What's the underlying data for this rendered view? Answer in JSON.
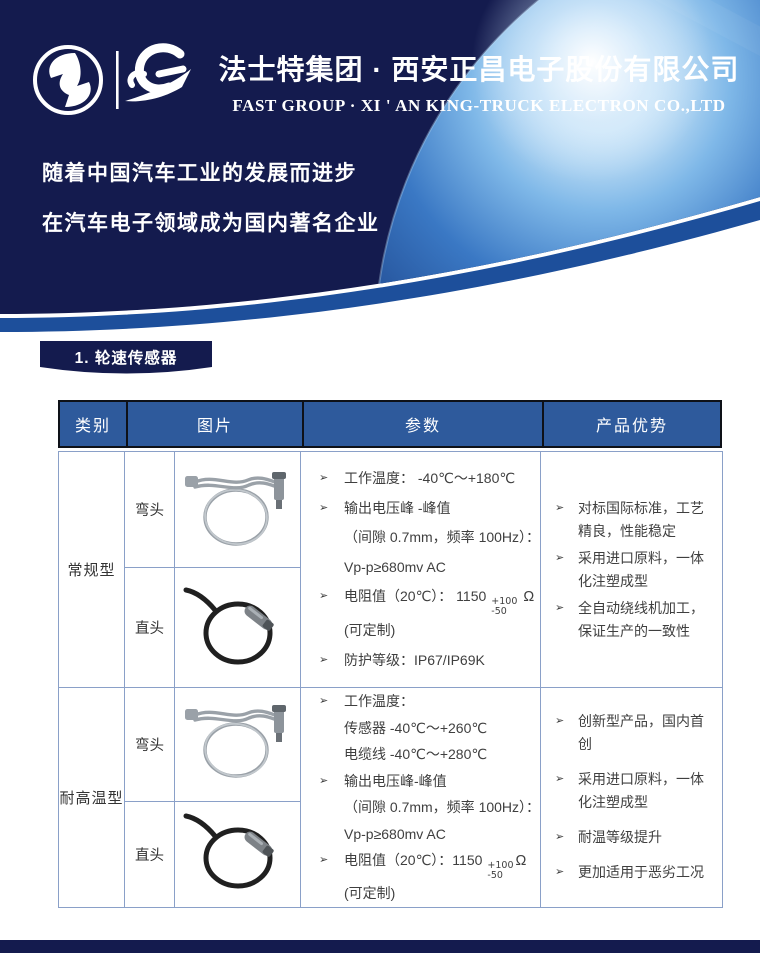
{
  "colors": {
    "navy": "#141b4e",
    "band_blue": "#1d4f9b",
    "table_header_blue": "#2e5a9c",
    "grid_blue": "#8aa0c8",
    "earth_light_blue": "#7fb8e8",
    "text_dark": "#3f3f3f"
  },
  "header": {
    "title_cn": "法士特集团 · 西安正昌电子股份有限公司",
    "title_en": "FAST GROUP · XI ' AN KING-TRUCK ELECTRON CO.,LTD",
    "tagline1": "随着中国汽车工业的发展而进步",
    "tagline2": "在汽车电子领域成为国内著名企业",
    "logos": {
      "left": "fast-group-circle-emblem",
      "right": "king-truck-zc-mark"
    }
  },
  "section": {
    "label": "1. 轮速传感器"
  },
  "table": {
    "bullet_glyph": "➢",
    "columns": [
      "类别",
      "图片",
      "参数",
      "产品优势"
    ],
    "rows": [
      {
        "category": "常规型",
        "variants": [
          {
            "label": "弯头",
            "image": "bent-head-sensor-coil"
          },
          {
            "label": "直头",
            "image": "straight-head-sensor-coil"
          }
        ],
        "params": [
          {
            "bullet": true,
            "text": "工作温度： -40℃～+180℃"
          },
          {
            "bullet": true,
            "text": "输出电压峰 -峰值"
          },
          {
            "bullet": false,
            "text": "（间隙 0.7mm，频率 100Hz）："
          },
          {
            "bullet": false,
            "text": "Vp-p≥680mv AC"
          },
          {
            "bullet": true,
            "text": "电阻值（20℃）： 1150",
            "tol_sup": "+100",
            "tol_sub": "-50",
            "suffix": " Ω"
          },
          {
            "bullet": false,
            "text": "(可定制)"
          },
          {
            "bullet": true,
            "text": "防护等级：IP67/IP69K"
          }
        ],
        "advantages": [
          "对标国际标准，工艺精良，性能稳定",
          "采用进口原料，一体化注塑成型",
          "全自动绕线机加工，保证生产的一致性"
        ]
      },
      {
        "category": "耐高温型",
        "variants": [
          {
            "label": "弯头",
            "image": "bent-head-sensor-coil"
          },
          {
            "label": "直头",
            "image": "straight-head-sensor-coil"
          }
        ],
        "params": [
          {
            "bullet": true,
            "text": "工作温度："
          },
          {
            "bullet": false,
            "text": "传感器 -40℃～+260℃"
          },
          {
            "bullet": false,
            "text": "电缆线 -40℃～+280℃"
          },
          {
            "bullet": true,
            "text": "输出电压峰-峰值"
          },
          {
            "bullet": false,
            "text": "（间隙 0.7mm，频率 100Hz）："
          },
          {
            "bullet": false,
            "text": "Vp-p≥680mv AC"
          },
          {
            "bullet": true,
            "text": "电阻值（20℃）：1150",
            "tol_sup": "+100",
            "tol_sub": "-50",
            "suffix": "Ω"
          },
          {
            "bullet": false,
            "text": "(可定制)"
          }
        ],
        "advantages": [
          "创新型产品，国内首创",
          "采用进口原料，一体化注塑成型",
          "耐温等级提升",
          "更加适用于恶劣工况"
        ]
      }
    ]
  }
}
